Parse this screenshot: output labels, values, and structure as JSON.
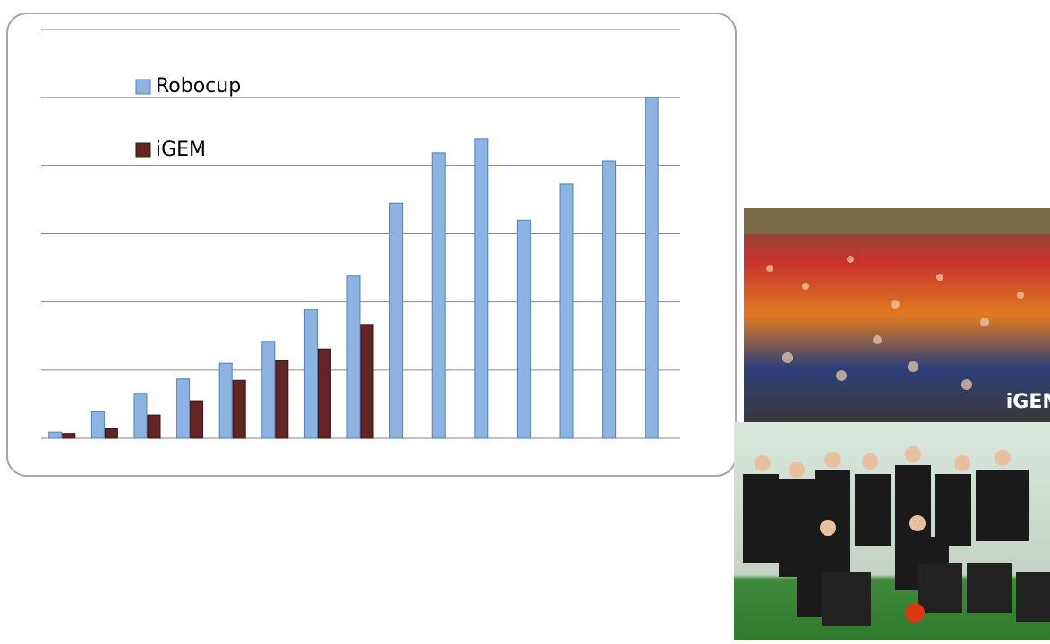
{
  "chart_data": {
    "type": "bar",
    "categories": [
      null,
      null,
      null,
      null,
      null,
      null,
      null,
      null,
      null,
      null,
      null,
      null,
      null,
      null,
      null
    ],
    "series": [
      {
        "name": "Robocup",
        "color": "#8db3e2",
        "values": [
          0.09,
          0.39,
          0.66,
          0.87,
          1.1,
          1.42,
          1.89,
          2.38,
          3.45,
          4.19,
          4.4,
          3.2,
          3.73,
          4.07,
          5.0
        ]
      },
      {
        "name": "iGEM",
        "color": "#632523",
        "values": [
          0.07,
          0.14,
          0.34,
          0.55,
          0.85,
          1.14,
          1.31,
          1.67,
          null,
          null,
          null,
          null,
          null,
          null,
          null
        ]
      }
    ],
    "ylim": [
      0,
      6
    ],
    "yticks": [
      0,
      1,
      2,
      3,
      4,
      5,
      6
    ],
    "grid": true,
    "legend": "top-left"
  }
}
